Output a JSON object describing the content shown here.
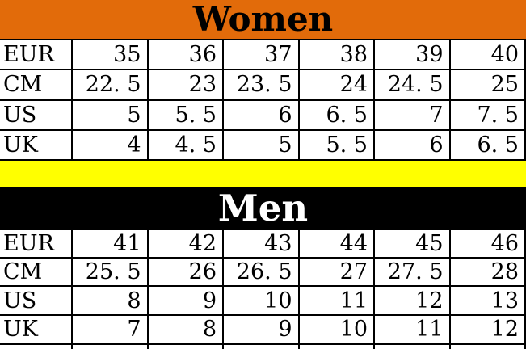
{
  "colors": {
    "women_header_bg": "#E26B0A",
    "women_title_color": "#000000",
    "men_header_bg": "#000000",
    "men_title_color": "#FFFFFF",
    "divider_bg": "#FFFF00",
    "table_bg": "#FFFFFF",
    "border_color": "#000000"
  },
  "women": {
    "title": "Women",
    "rows": [
      {
        "label": "EUR",
        "values": [
          "35",
          "36",
          "37",
          "38",
          "39",
          "40"
        ]
      },
      {
        "label": "CM",
        "values": [
          "22. 5",
          "23",
          "23. 5",
          "24",
          "24. 5",
          "25"
        ]
      },
      {
        "label": "US",
        "values": [
          "5",
          "5. 5",
          "6",
          "6. 5",
          "7",
          "7. 5"
        ]
      },
      {
        "label": "UK",
        "values": [
          "4",
          "4. 5",
          "5",
          "5. 5",
          "6",
          "6. 5"
        ]
      }
    ]
  },
  "men": {
    "title": "Men",
    "rows": [
      {
        "label": "EUR",
        "values": [
          "41",
          "42",
          "43",
          "44",
          "45",
          "46"
        ]
      },
      {
        "label": "CM",
        "values": [
          "25. 5",
          "26",
          "26. 5",
          "27",
          "27. 5",
          "28"
        ]
      },
      {
        "label": "US",
        "values": [
          "8",
          "9",
          "10",
          "11",
          "12",
          "13"
        ]
      },
      {
        "label": "UK",
        "values": [
          "7",
          "8",
          "9",
          "10",
          "11",
          "12"
        ]
      }
    ]
  },
  "chart_data": [
    {
      "type": "table",
      "title": "Women",
      "row_headers": [
        "EUR",
        "CM",
        "US",
        "UK"
      ],
      "rows": [
        [
          35,
          36,
          37,
          38,
          39,
          40
        ],
        [
          22.5,
          23,
          23.5,
          24,
          24.5,
          25
        ],
        [
          5,
          5.5,
          6,
          6.5,
          7,
          7.5
        ],
        [
          4,
          4.5,
          5,
          5.5,
          6,
          6.5
        ]
      ]
    },
    {
      "type": "table",
      "title": "Men",
      "row_headers": [
        "EUR",
        "CM",
        "US",
        "UK"
      ],
      "rows": [
        [
          41,
          42,
          43,
          44,
          45,
          46
        ],
        [
          25.5,
          26,
          26.5,
          27,
          27.5,
          28
        ],
        [
          8,
          9,
          10,
          11,
          12,
          13
        ],
        [
          7,
          8,
          9,
          10,
          11,
          12
        ]
      ]
    }
  ]
}
